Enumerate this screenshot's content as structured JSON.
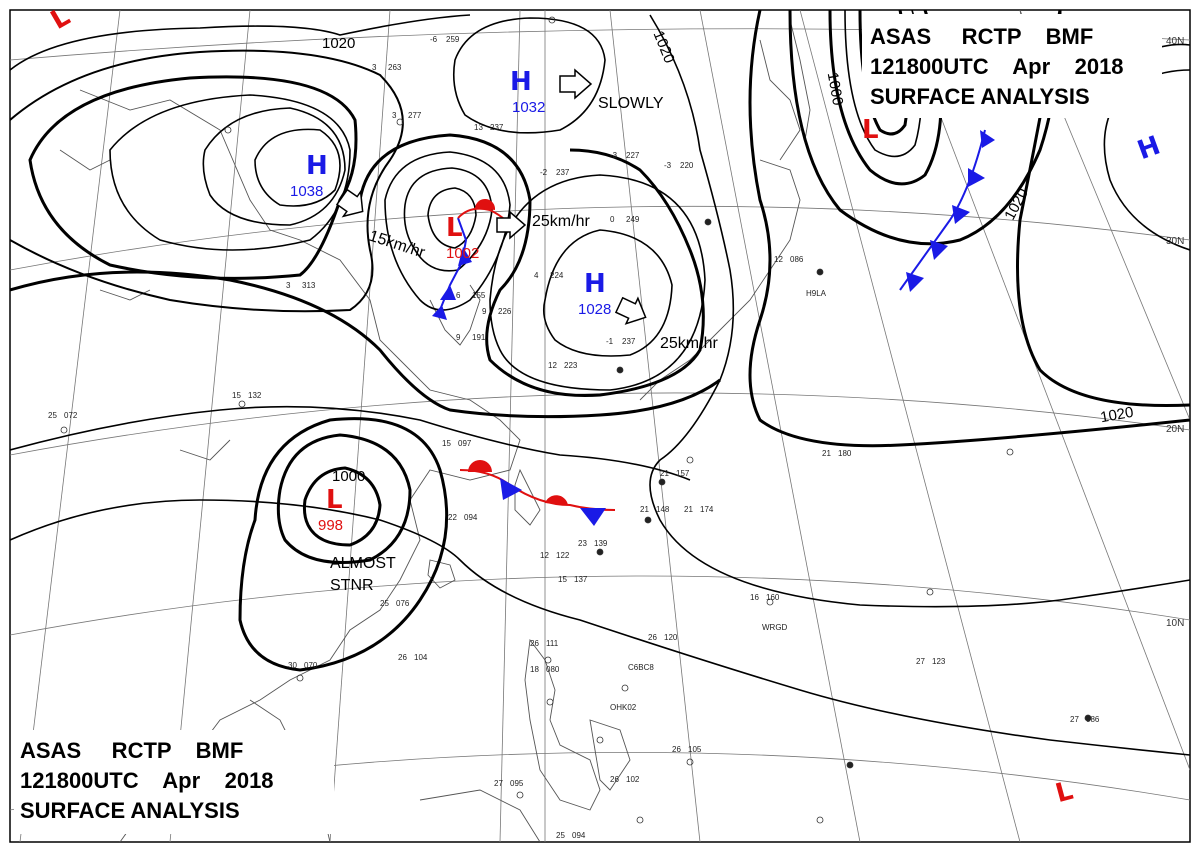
{
  "header_top": {
    "line1": "ASAS     RCTP    BMF",
    "line2": "121800UTC    Apr    2018",
    "line3": "SURFACE ANALYSIS"
  },
  "header_bottom": {
    "line1": "ASAS     RCTP    BMF",
    "line2": "121800UTC    Apr    2018",
    "line3": "SURFACE ANALYSIS"
  },
  "pressure_centers": [
    {
      "type": "H",
      "value": "1038",
      "color": "#1a1ae6"
    },
    {
      "type": "L",
      "value": "1002",
      "color": "#e01010"
    },
    {
      "type": "H",
      "value": "1032",
      "color": "#1a1ae6"
    },
    {
      "type": "H",
      "value": "1028",
      "color": "#1a1ae6"
    },
    {
      "type": "L",
      "value": "998",
      "color": "#e01010"
    },
    {
      "type": "L",
      "value": "",
      "color": "#e01010"
    },
    {
      "type": "H",
      "value": "",
      "color": "#1a1ae6"
    },
    {
      "type": "L",
      "value": "",
      "color": "#e01010"
    },
    {
      "type": "L",
      "value": "",
      "color": "#e01010"
    }
  ],
  "motions": [
    {
      "label": "15km/hr"
    },
    {
      "label": "25km/hr"
    },
    {
      "label": "SLOWLY"
    },
    {
      "label": "25km/hr"
    },
    {
      "label": "ALMOST"
    },
    {
      "label": "STNR"
    }
  ],
  "isobar_labels": [
    "1020",
    "1020",
    "1000",
    "1020",
    "1020",
    "1000"
  ],
  "latitude_labels": [
    "40N",
    "30N",
    "20N",
    "10N"
  ],
  "station_ids": [
    "H9LA",
    "WRGD",
    "C6BC8",
    "OHK02"
  ],
  "station_plots": [
    {
      "a": "25",
      "b": "072"
    },
    {
      "a": "15",
      "b": "132"
    },
    {
      "a": "15",
      "b": "097"
    },
    {
      "a": "22",
      "b": "094"
    },
    {
      "a": "23",
      "b": "139"
    },
    {
      "a": "21",
      "b": "148"
    },
    {
      "a": "21",
      "b": "157"
    },
    {
      "a": "21",
      "b": "174"
    },
    {
      "a": "21",
      "b": "180"
    },
    {
      "a": "25",
      "b": "076"
    },
    {
      "a": "30",
      "b": "070"
    },
    {
      "a": "26",
      "b": "104"
    },
    {
      "a": "26",
      "b": "111"
    },
    {
      "a": "18",
      "b": "080"
    },
    {
      "a": "26",
      "b": "120"
    },
    {
      "a": "26",
      "b": "105"
    },
    {
      "a": "27",
      "b": "095"
    },
    {
      "a": "26",
      "b": "102"
    },
    {
      "a": "25",
      "b": "094"
    },
    {
      "a": "27",
      "b": "123"
    },
    {
      "a": "27",
      "b": "086"
    },
    {
      "a": "12",
      "b": "086"
    },
    {
      "a": "-3",
      "b": "227"
    },
    {
      "a": "-3",
      "b": "220"
    },
    {
      "a": "0",
      "b": "249"
    },
    {
      "a": "4",
      "b": "224"
    },
    {
      "a": "9",
      "b": "226"
    },
    {
      "a": "12",
      "b": "223"
    },
    {
      "a": "13",
      "b": "237"
    },
    {
      "a": "9",
      "b": "191"
    },
    {
      "a": "6",
      "b": "155"
    },
    {
      "a": "-1",
      "b": "237"
    },
    {
      "a": "-2",
      "b": "237"
    },
    {
      "a": "-6",
      "b": "259"
    },
    {
      "a": "3",
      "b": "263"
    },
    {
      "a": "3",
      "b": "277"
    },
    {
      "a": "3",
      "b": "313"
    },
    {
      "a": "16",
      "b": "160"
    },
    {
      "a": "15",
      "b": "137"
    },
    {
      "a": "12",
      "b": "122"
    }
  ]
}
